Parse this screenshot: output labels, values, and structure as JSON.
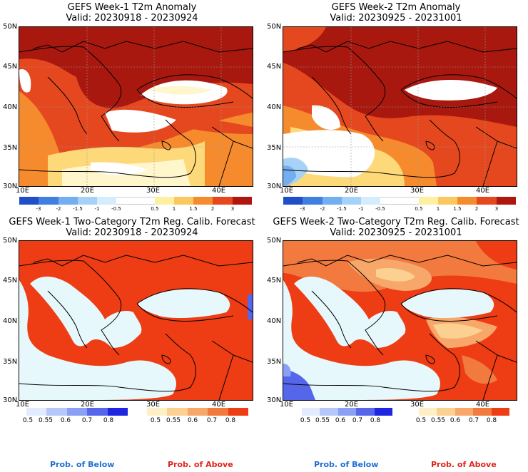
{
  "panels": [
    {
      "id": "w1-anom",
      "title": "GEFS Week-1 T2m Anomaly",
      "valid": "Valid: 20230918 - 20230924"
    },
    {
      "id": "w2-anom",
      "title": "GEFS Week-2 T2m Anomaly",
      "valid": "Valid: 20230925 - 20231001"
    },
    {
      "id": "w1-prob",
      "title": "GEFS Week-1 Two-Category T2m Reg. Calib. Forecast",
      "valid": "Valid: 20230918 - 20230924"
    },
    {
      "id": "w2-prob",
      "title": "GEFS Week-2 Two-Category T2m Reg. Calib. Forecast",
      "valid": "Valid: 20230925 - 20231001"
    }
  ],
  "lat_labels": [
    "50N",
    "45N",
    "40N",
    "35N",
    "30N"
  ],
  "lon_labels": [
    "10E",
    "20E",
    "30E",
    "40E"
  ],
  "anomaly_scale": {
    "ticks": [
      "-3",
      "-2",
      "-1.5",
      "-1",
      "-0.5",
      "0.5",
      "1",
      "1.5",
      "2",
      "3"
    ],
    "colors": [
      "#1f4fc8",
      "#3f7fe0",
      "#73aef0",
      "#a6d2f8",
      "#d4ecfc",
      "#ffffff",
      "#ffffff",
      "#fdf0a0",
      "#fbc860",
      "#f68b2e",
      "#e5481f",
      "#b0150f"
    ]
  },
  "prob_below": {
    "ticks": [
      "0.5",
      "0.55",
      "0.6",
      "0.7",
      "0.8"
    ],
    "colors": [
      "#e3ecff",
      "#b6c8fb",
      "#8aa0f4",
      "#5566ea",
      "#1e26e2"
    ],
    "label": "Prob. of Below",
    "label_color": "#1f6fd6"
  },
  "prob_above": {
    "ticks": [
      "0.5",
      "0.55",
      "0.6",
      "0.7",
      "0.8"
    ],
    "colors": [
      "#fdf0c4",
      "#fbd090",
      "#f7a76a",
      "#f27a3e",
      "#ee3c14"
    ],
    "label": "Prob. of Above",
    "label_color": "#e0241a"
  },
  "colors": {
    "sea": "#e6f8fb",
    "hot": "#a8180f",
    "red": "#e5481f",
    "orange": "#f68b2e",
    "yellow": "#fdd97a",
    "pale": "#fff6cc",
    "prob_red": "#ee3c14",
    "prob_orange": "#f27a3e",
    "prob_lightorange": "#f7a76a",
    "prob_pale": "#fbd090",
    "prob_blue": "#5566ea"
  }
}
